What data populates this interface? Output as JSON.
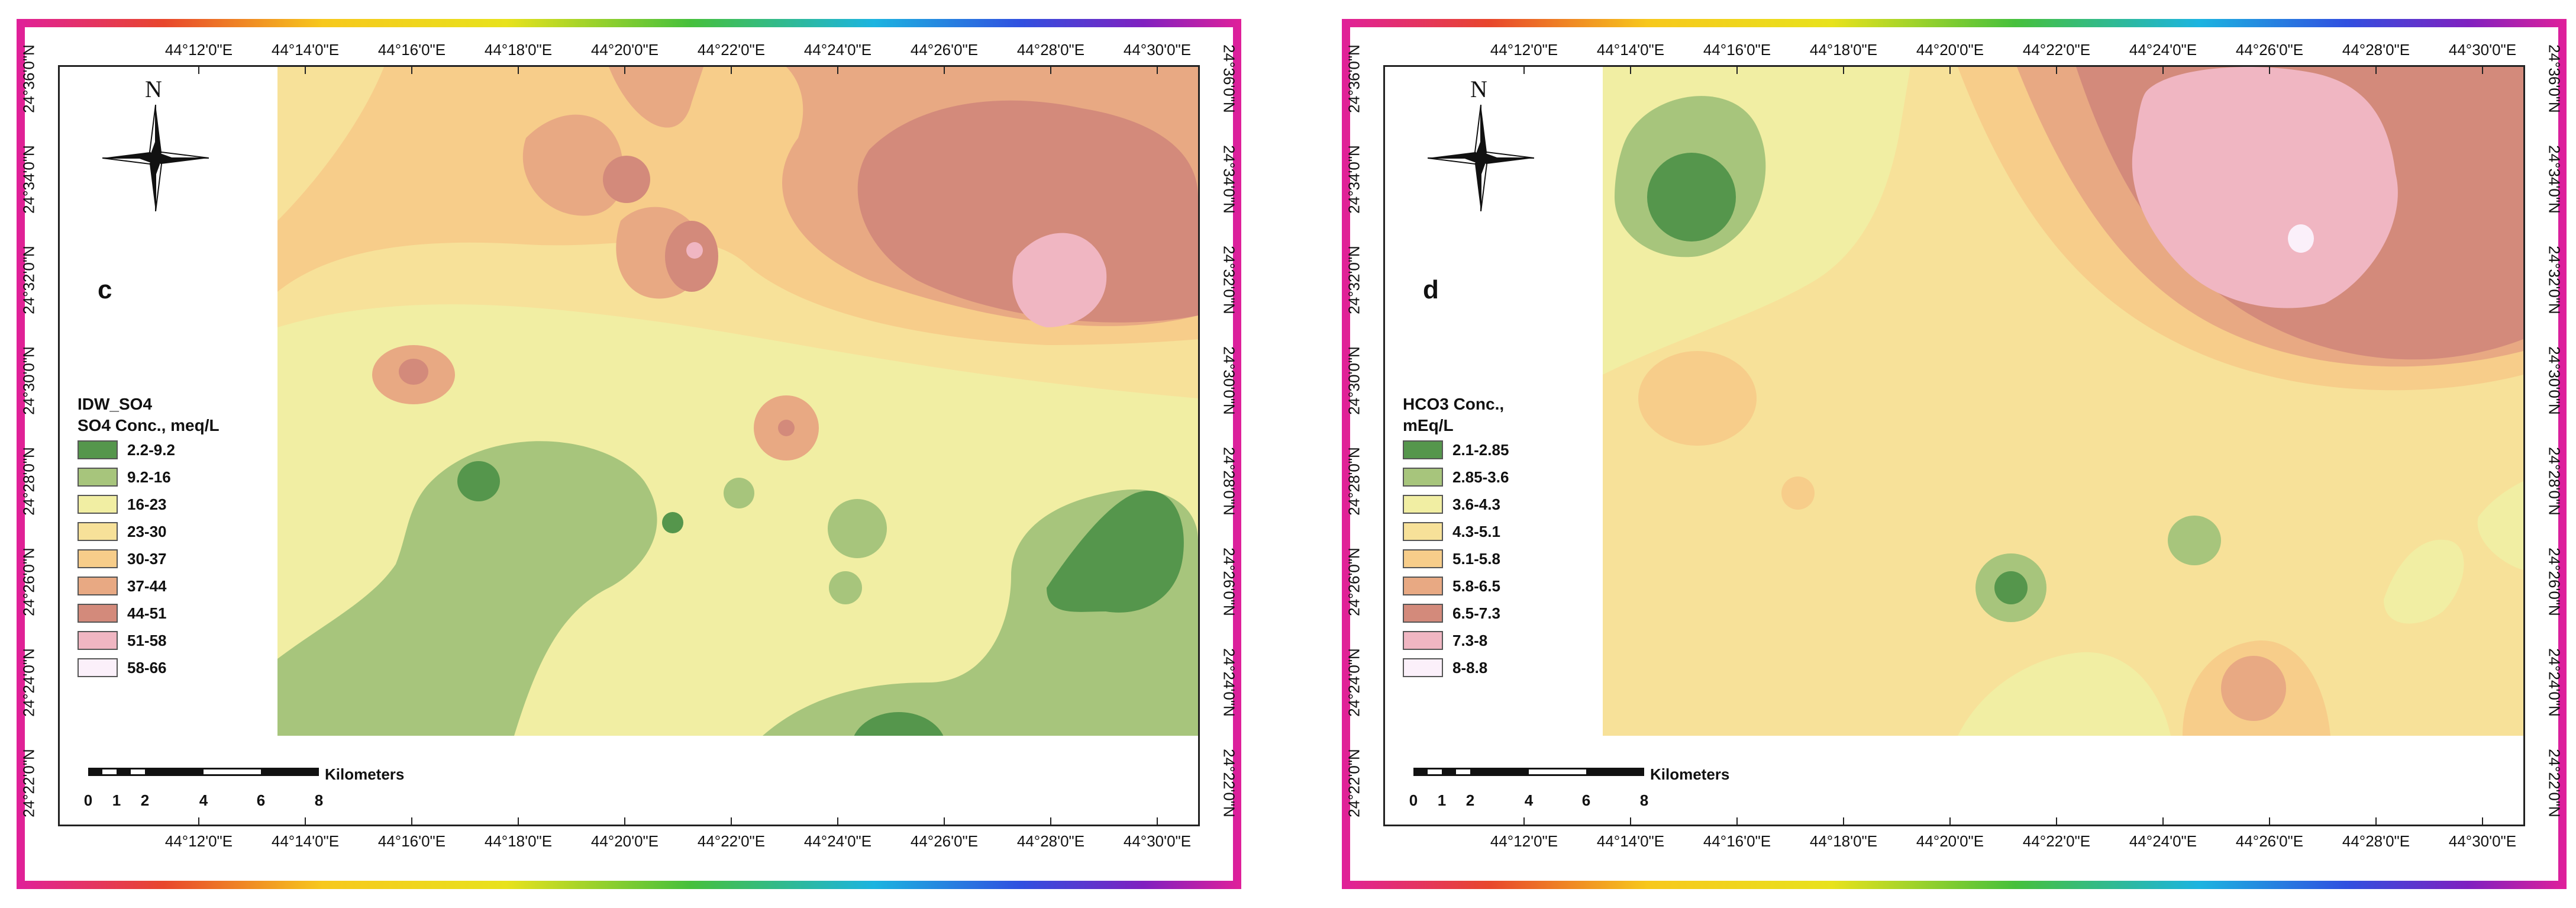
{
  "colors": {
    "c1": "#55964c",
    "c2": "#a7c57c",
    "c3": "#f1eea3",
    "c4": "#f7e199",
    "c5": "#f7cd8a",
    "c6": "#e8a983",
    "c7": "#d38a7b",
    "c8": "#f0b6c2",
    "c9": "#fbf0fa"
  },
  "ticks": {
    "lon": [
      "44°12'0\"E",
      "44°14'0\"E",
      "44°16'0\"E",
      "44°18'0\"E",
      "44°20'0\"E",
      "44°22'0\"E",
      "44°24'0\"E",
      "44°26'0\"E",
      "44°28'0\"E",
      "44°30'0\"E"
    ],
    "lat": [
      "24°36'0\"N",
      "24°34'0\"N",
      "24°32'0\"N",
      "24°30'0\"N",
      "24°28'0\"N",
      "24°26'0\"N",
      "24°24'0\"N",
      "24°22'0\"N"
    ]
  },
  "north_label": "N",
  "scale": {
    "unit": "Kilometers",
    "labels": [
      "0",
      "1",
      "2",
      "4",
      "6",
      "8"
    ]
  },
  "panels": [
    {
      "letter": "c",
      "legend_title": "IDW_SO4\nSO4 Conc., meq/L",
      "classes": [
        "2.2-9.2",
        "9.2-16",
        "16-23",
        "23-30",
        "30-37",
        "37-44",
        "44-51",
        "51-58",
        "58-66"
      ]
    },
    {
      "letter": "d",
      "legend_title": "HCO3 Conc.,\n mEq/L",
      "classes": [
        "2.1-2.85",
        "2.85-3.6",
        "3.6-4.3",
        "4.3-5.1",
        "5.1-5.8",
        "5.8-6.5",
        "6.5-7.3",
        "7.3-8",
        "8-8.8"
      ]
    }
  ]
}
